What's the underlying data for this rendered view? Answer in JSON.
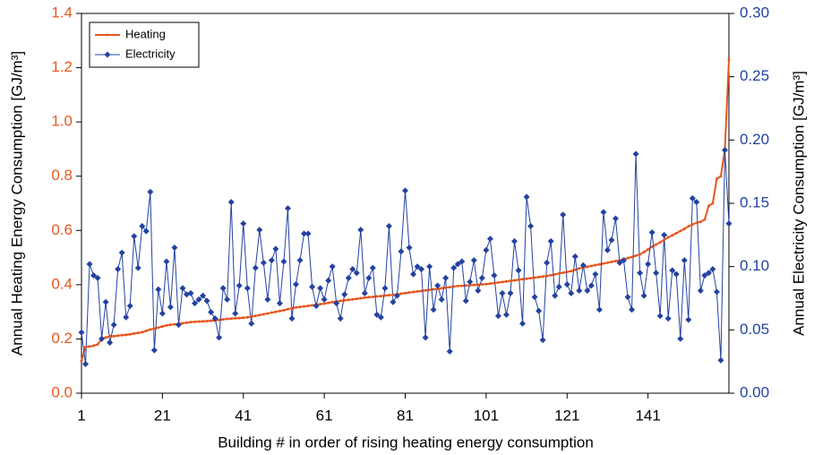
{
  "chart_data": {
    "type": "line",
    "xlabel": "Building # in order of rising heating energy consumption",
    "ylabel": "Annual Heating Energy Consumption [GJ/m³]",
    "y2label": "Annual Electricity Consumption [GJ/m³]",
    "x": [
      1,
      2,
      3,
      4,
      5,
      6,
      7,
      8,
      9,
      10,
      11,
      12,
      13,
      14,
      15,
      16,
      17,
      18,
      19,
      20,
      21,
      22,
      23,
      24,
      25,
      26,
      27,
      28,
      29,
      30,
      31,
      32,
      33,
      34,
      35,
      36,
      37,
      38,
      39,
      40,
      41,
      42,
      43,
      44,
      45,
      46,
      47,
      48,
      49,
      50,
      51,
      52,
      53,
      54,
      55,
      56,
      57,
      58,
      59,
      60,
      61,
      62,
      63,
      64,
      65,
      66,
      67,
      68,
      69,
      70,
      71,
      72,
      73,
      74,
      75,
      76,
      77,
      78,
      79,
      80,
      81,
      82,
      83,
      84,
      85,
      86,
      87,
      88,
      89,
      90,
      91,
      92,
      93,
      94,
      95,
      96,
      97,
      98,
      99,
      100,
      101,
      102,
      103,
      104,
      105,
      106,
      107,
      108,
      109,
      110,
      111,
      112,
      113,
      114,
      115,
      116,
      117,
      118,
      119,
      120,
      121,
      122,
      123,
      124,
      125,
      126,
      127,
      128,
      129,
      130,
      131,
      132,
      133,
      134,
      135,
      136,
      137,
      138,
      139,
      140,
      141,
      142,
      143,
      144,
      145,
      146,
      147,
      148,
      149,
      150,
      151,
      152,
      153,
      154,
      155,
      156,
      157,
      158,
      159,
      160,
      161
    ],
    "xlim": [
      1,
      161
    ],
    "xticks": [
      1,
      21,
      41,
      61,
      81,
      101,
      121,
      141
    ],
    "ylim": [
      0,
      1.4
    ],
    "yticks": [
      {
        "value": 0,
        "label": "0.0"
      },
      0.2,
      0.4,
      0.6,
      0.8,
      {
        "value": 1,
        "label": "1.0"
      },
      1.2,
      1.4
    ],
    "y2lim": [
      0,
      0.3
    ],
    "y2ticks": [
      {
        "value": 0,
        "label": "0.00"
      },
      0.05,
      {
        "value": 0.1,
        "label": "0.10"
      },
      0.15,
      {
        "value": 0.2,
        "label": "0.20"
      },
      0.25,
      {
        "value": 0.3,
        "label": "0.30"
      }
    ],
    "legend": "top-left",
    "series": [
      {
        "name": "Heating",
        "color": "#e8561f",
        "marker": "circle",
        "values": [
          0.12,
          0.17,
          0.172,
          0.175,
          0.18,
          0.2,
          0.205,
          0.21,
          0.21,
          0.212,
          0.214,
          0.215,
          0.217,
          0.22,
          0.222,
          0.225,
          0.23,
          0.235,
          0.238,
          0.242,
          0.246,
          0.25,
          0.252,
          0.254,
          0.256,
          0.258,
          0.26,
          0.262,
          0.263,
          0.264,
          0.265,
          0.266,
          0.267,
          0.268,
          0.27,
          0.272,
          0.274,
          0.275,
          0.276,
          0.277,
          0.278,
          0.28,
          0.282,
          0.285,
          0.288,
          0.291,
          0.294,
          0.297,
          0.3,
          0.303,
          0.306,
          0.31,
          0.313,
          0.316,
          0.318,
          0.32,
          0.322,
          0.324,
          0.326,
          0.328,
          0.33,
          0.333,
          0.336,
          0.338,
          0.34,
          0.342,
          0.344,
          0.346,
          0.348,
          0.35,
          0.352,
          0.354,
          0.355,
          0.357,
          0.358,
          0.36,
          0.361,
          0.363,
          0.365,
          0.367,
          0.369,
          0.371,
          0.373,
          0.375,
          0.377,
          0.379,
          0.381,
          0.383,
          0.385,
          0.387,
          0.389,
          0.391,
          0.393,
          0.395,
          0.396,
          0.397,
          0.398,
          0.399,
          0.4,
          0.401,
          0.402,
          0.404,
          0.406,
          0.408,
          0.41,
          0.412,
          0.414,
          0.416,
          0.418,
          0.42,
          0.422,
          0.424,
          0.426,
          0.428,
          0.43,
          0.432,
          0.435,
          0.438,
          0.441,
          0.444,
          0.447,
          0.45,
          0.455,
          0.46,
          0.463,
          0.466,
          0.469,
          0.472,
          0.475,
          0.478,
          0.481,
          0.484,
          0.487,
          0.49,
          0.494,
          0.498,
          0.502,
          0.507,
          0.512,
          0.52,
          0.53,
          0.54,
          0.548,
          0.556,
          0.565,
          0.575,
          0.582,
          0.59,
          0.598,
          0.606,
          0.615,
          0.622,
          0.628,
          0.632,
          0.64,
          0.69,
          0.7,
          0.79,
          0.8,
          0.9,
          1.23
        ]
      },
      {
        "name": "Electricity",
        "color": "#2342a0",
        "marker": "diamond",
        "axis": "y2",
        "values": [
          0.048,
          0.023,
          0.102,
          0.093,
          0.091,
          0.043,
          0.072,
          0.04,
          0.054,
          0.098,
          0.111,
          0.06,
          0.069,
          0.124,
          0.099,
          0.132,
          0.128,
          0.159,
          0.034,
          0.082,
          0.063,
          0.104,
          0.068,
          0.115,
          0.054,
          0.083,
          0.078,
          0.079,
          0.071,
          0.074,
          0.077,
          0.073,
          0.064,
          0.059,
          0.044,
          0.083,
          0.074,
          0.151,
          0.063,
          0.085,
          0.134,
          0.083,
          0.055,
          0.099,
          0.129,
          0.103,
          0.074,
          0.105,
          0.114,
          0.071,
          0.104,
          0.146,
          0.059,
          0.086,
          0.105,
          0.126,
          0.126,
          0.084,
          0.069,
          0.083,
          0.074,
          0.089,
          0.1,
          0.071,
          0.059,
          0.078,
          0.091,
          0.098,
          0.095,
          0.129,
          0.079,
          0.091,
          0.099,
          0.062,
          0.06,
          0.083,
          0.132,
          0.072,
          0.077,
          0.112,
          0.16,
          0.115,
          0.094,
          0.1,
          0.098,
          0.044,
          0.1,
          0.066,
          0.085,
          0.074,
          0.091,
          0.033,
          0.099,
          0.102,
          0.104,
          0.073,
          0.088,
          0.105,
          0.081,
          0.091,
          0.113,
          0.122,
          0.093,
          0.061,
          0.079,
          0.062,
          0.079,
          0.12,
          0.097,
          0.055,
          0.155,
          0.132,
          0.076,
          0.065,
          0.042,
          0.103,
          0.12,
          0.077,
          0.084,
          0.141,
          0.086,
          0.079,
          0.108,
          0.081,
          0.101,
          0.081,
          0.085,
          0.094,
          0.066,
          0.143,
          0.113,
          0.121,
          0.138,
          0.103,
          0.105,
          0.076,
          0.066,
          0.189,
          0.095,
          0.077,
          0.102,
          0.127,
          0.095,
          0.061,
          0.125,
          0.059,
          0.097,
          0.094,
          0.043,
          0.105,
          0.058,
          0.154,
          0.151,
          0.081,
          0.093,
          0.095,
          0.098,
          0.08,
          0.026,
          0.192,
          0.134
        ]
      }
    ]
  }
}
